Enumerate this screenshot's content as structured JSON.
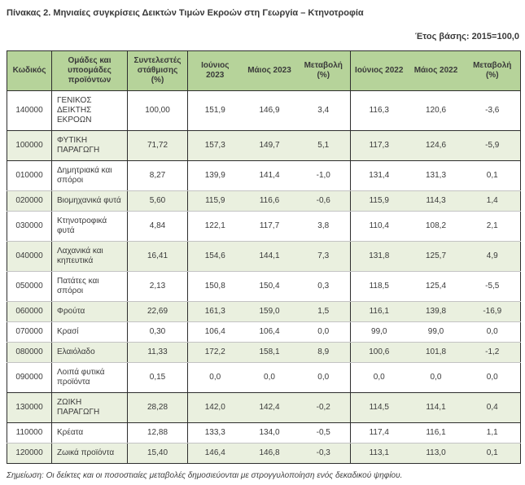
{
  "title": "Πίνακας 2. Μηνιαίες συγκρίσεις Δεικτών Τιμών Εκροών στη Γεωργία – Κτηνοτροφία",
  "base_year": "Έτος βάσης: 2015=100,0",
  "note": "Σημείωση: Οι δείκτες και οι ποσοστιαίες μεταβολές δημοσιεύονται με στρογγυλοποίηση ενός δεκαδικού ψηφίου.",
  "colors": {
    "header_green": "#b6d39a",
    "row_green": "#eaf0df",
    "border_dark": "#2e2e2e",
    "text": "#3a3a3a"
  },
  "table": {
    "headers": [
      "Κωδικός",
      "Ομάδες και υποομάδες προϊόντων",
      "Συντελεστές στάθμισης (%)",
      "Ιούνιος 2023",
      "Μάιος 2023",
      "Μεταβολή (%)",
      "Ιούνιος 2022",
      "Μάιος 2022",
      "Μεταβολή (%)"
    ],
    "rows": [
      {
        "code": "140000",
        "name": "ΓΕΝΙΚΟΣ ΔΕΙΚΤΗΣ ΕΚΡΟΩΝ",
        "weight": "100,00",
        "jun_2023": "151,9",
        "may_2023": "146,9",
        "change_2023": "3,4",
        "jun_2022": "116,3",
        "may_2022": "120,6",
        "change_2022": "-3,6",
        "shaded": false,
        "section_end": true
      },
      {
        "code": "100000",
        "name": "ΦΥΤΙΚΗ ΠΑΡΑΓΩΓΗ",
        "weight": "71,72",
        "jun_2023": "157,3",
        "may_2023": "149,7",
        "change_2023": "5,1",
        "jun_2022": "117,3",
        "may_2022": "124,6",
        "change_2022": "-5,9",
        "shaded": true,
        "section_end": true
      },
      {
        "code": "010000",
        "name": "Δημητριακά και σπόροι",
        "weight": "8,27",
        "jun_2023": "139,9",
        "may_2023": "141,4",
        "change_2023": "-1,0",
        "jun_2022": "131,4",
        "may_2022": "131,3",
        "change_2022": "0,1",
        "shaded": false,
        "section_end": false
      },
      {
        "code": "020000",
        "name": "Βιομηχανικά φυτά",
        "weight": "5,60",
        "jun_2023": "115,9",
        "may_2023": "116,6",
        "change_2023": "-0,6",
        "jun_2022": "115,9",
        "may_2022": "114,3",
        "change_2022": "1,4",
        "shaded": true,
        "section_end": false
      },
      {
        "code": "030000",
        "name": "Κτηνοτροφικά φυτά",
        "weight": "4,84",
        "jun_2023": "122,1",
        "may_2023": "117,7",
        "change_2023": "3,8",
        "jun_2022": "110,4",
        "may_2022": "108,2",
        "change_2022": "2,1",
        "shaded": false,
        "section_end": false
      },
      {
        "code": "040000",
        "name": "Λαχανικά και κηπευτικά",
        "weight": "16,41",
        "jun_2023": "154,6",
        "may_2023": "144,1",
        "change_2023": "7,3",
        "jun_2022": "131,8",
        "may_2022": "125,7",
        "change_2022": "4,9",
        "shaded": true,
        "section_end": false
      },
      {
        "code": "050000",
        "name": "Πατάτες και σπόροι",
        "weight": "2,13",
        "jun_2023": "150,8",
        "may_2023": "150,4",
        "change_2023": "0,3",
        "jun_2022": "118,5",
        "may_2022": "125,4",
        "change_2022": "-5,5",
        "shaded": false,
        "section_end": false
      },
      {
        "code": "060000",
        "name": "Φρούτα",
        "weight": "22,69",
        "jun_2023": "161,3",
        "may_2023": "159,0",
        "change_2023": "1,5",
        "jun_2022": "116,1",
        "may_2022": "139,8",
        "change_2022": "-16,9",
        "shaded": true,
        "section_end": false
      },
      {
        "code": "070000",
        "name": "Κρασί",
        "weight": "0,30",
        "jun_2023": "106,4",
        "may_2023": "106,4",
        "change_2023": "0,0",
        "jun_2022": "99,0",
        "may_2022": "99,0",
        "change_2022": "0,0",
        "shaded": false,
        "section_end": false
      },
      {
        "code": "080000",
        "name": "Ελαιόλαδο",
        "weight": "11,33",
        "jun_2023": "172,2",
        "may_2023": "158,1",
        "change_2023": "8,9",
        "jun_2022": "100,6",
        "may_2022": "101,8",
        "change_2022": "-1,2",
        "shaded": true,
        "section_end": false
      },
      {
        "code": "090000",
        "name": "Λοιπά φυτικά προϊόντα",
        "weight": "0,15",
        "jun_2023": "0,0",
        "may_2023": "0,0",
        "change_2023": "0,0",
        "jun_2022": "0,0",
        "may_2022": "0,0",
        "change_2022": "0,0",
        "shaded": false,
        "section_end": true
      },
      {
        "code": "130000",
        "name": "ΖΩΙΚΗ ΠΑΡΑΓΩΓΗ",
        "weight": "28,28",
        "jun_2023": "142,0",
        "may_2023": "142,4",
        "change_2023": "-0,2",
        "jun_2022": "114,5",
        "may_2022": "114,1",
        "change_2022": "0,4",
        "shaded": true,
        "section_end": true
      },
      {
        "code": "110000",
        "name": "Κρέατα",
        "weight": "12,88",
        "jun_2023": "133,3",
        "may_2023": "134,0",
        "change_2023": "-0,5",
        "jun_2022": "117,4",
        "may_2022": "116,1",
        "change_2022": "1,1",
        "shaded": false,
        "section_end": false
      },
      {
        "code": "120000",
        "name": "Ζωικά προϊόντα",
        "weight": "15,40",
        "jun_2023": "146,4",
        "may_2023": "146,8",
        "change_2023": "-0,3",
        "jun_2022": "113,1",
        "may_2022": "113,0",
        "change_2022": "0,1",
        "shaded": true,
        "section_end": true
      }
    ]
  }
}
